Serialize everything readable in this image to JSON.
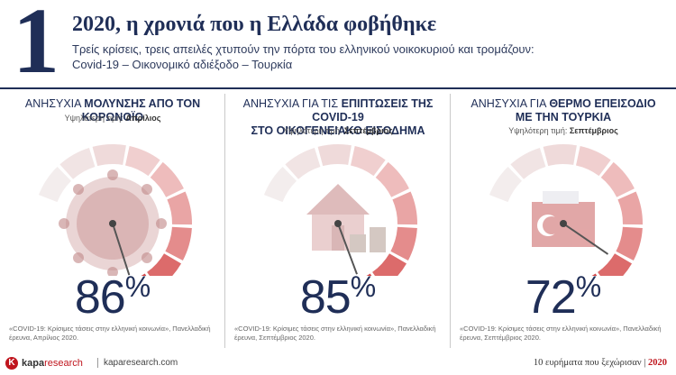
{
  "header": {
    "number": "1",
    "title": "2020, η χρονιά που η Ελλάδα φοβήθηκε",
    "subtitle_line1": "Τρείς κρίσεις, τρεις απειλές χτυπούν την πόρτα του ελληνικού νοικοκυριού και τρομάζουν:",
    "subtitle_line2": "Covid-19 – Οικονομικό αδιέξοδο – Τουρκία"
  },
  "panels": [
    {
      "title_prefix": "ΑΝΗΣΥΧΙΑ",
      "title_bold": "ΜΟΛΥΝΣΗΣ ΑΠΟ ΤΟΝ ΚΟΡΩΝΟΪΟ",
      "title_line2": "",
      "peak_label": "Υψηλότερη τιμή:",
      "peak_value": "Απρίλιος",
      "percent": "86",
      "percent_sign": "%",
      "gauge_level": 0.86,
      "image": "coronavirus",
      "source": "«COVID-19: Κρίσιμες τάσεις στην ελληνική κοινωνία», Πανελλαδική έρευνα, Απρίλιος 2020."
    },
    {
      "title_prefix": "ΑΝΗΣΥΧΙΑ ΓΙΑ ΤΙΣ",
      "title_bold": "ΕΠΙΠΤΩΣΕΙΣ ΤΗΣ COVID-19",
      "title_line2": "ΣΤΟ ΟΙΚΟΓΕΝΕΙΑΚΟ ΕΙΣΟΔΗΜΑ",
      "peak_label": "Υψηλότερη τιμή:",
      "peak_value": "Σεπτέμβριος",
      "percent": "85",
      "percent_sign": "%",
      "gauge_level": 0.85,
      "image": "house-coins",
      "source": "«COVID-19: Κρίσιμες τάσεις στην ελληνική κοινωνία», Πανελλαδική έρευνα, Σεπτέμβριος 2020."
    },
    {
      "title_prefix": "ΑΝΗΣΥΧΙΑ ΓΙΑ",
      "title_bold": "ΘΕΡΜΟ ΕΠΕΙΣΟΔΙΟ",
      "title_line2": "ΜΕ ΤΗΝ ΤΟΥΡΚΙΑ",
      "peak_label": "Υψηλότερη τιμή:",
      "peak_value": "Σεπτέμβριος",
      "percent": "72",
      "percent_sign": "%",
      "gauge_level": 0.72,
      "image": "ship-flag",
      "source": "«COVID-19: Κρίσιμες τάσεις στην ελληνική κοινωνία», Πανελλαδική έρευνα, Σεπτέμβριος 2020."
    }
  ],
  "gauge_colors": [
    "#f3eded",
    "#f1e4e4",
    "#efdada",
    "#f0cfcf",
    "#eebcbc",
    "#e9a5a5",
    "#e48c8c",
    "#dc6b6b",
    "#d44a4a",
    "#c81c1c"
  ],
  "footer": {
    "logo_mark": "K",
    "brand_a": "kapa",
    "brand_b": "research",
    "site": "kaparesearch.com",
    "right_text": "10 ευρήματα που ξεχώρισαν |",
    "year": "2020"
  }
}
